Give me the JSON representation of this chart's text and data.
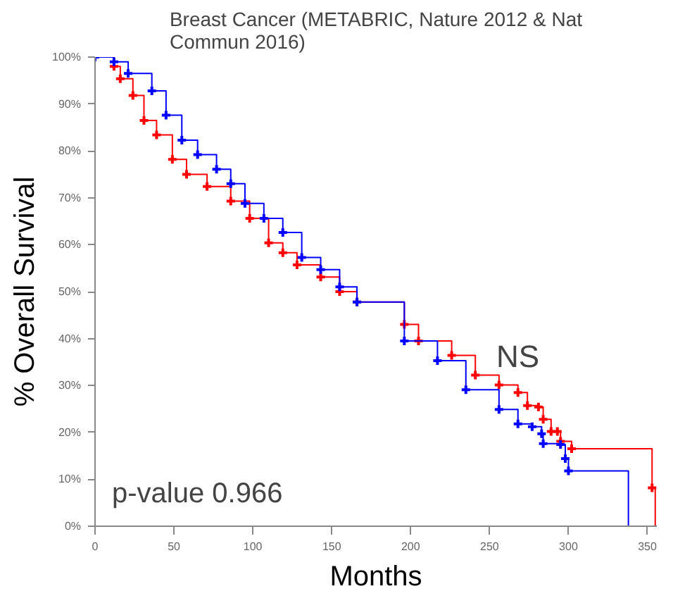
{
  "chart_data": {
    "type": "step",
    "title": "Breast Cancer (METABRIC, Nature 2012 & Nat Commun 2016)",
    "xlabel": "Months",
    "ylabel": "% Overall Survival",
    "annotations": [
      "p-value 0.966",
      "NS"
    ],
    "xlim": [
      0,
      356
    ],
    "xticks": [
      0,
      50,
      100,
      150,
      200,
      250,
      300,
      350
    ],
    "ylim": [
      0,
      100
    ],
    "yticks": [
      {
        "value": 0,
        "label": "0%"
      },
      {
        "value": 10,
        "label": "10%"
      },
      {
        "value": 20,
        "label": "20%"
      },
      {
        "value": 30,
        "label": "30%"
      },
      {
        "value": 40,
        "label": "40%"
      },
      {
        "value": 50,
        "label": "50%"
      },
      {
        "value": 60,
        "label": "60%"
      },
      {
        "value": 70,
        "label": "70%"
      },
      {
        "value": 80,
        "label": "80%"
      },
      {
        "value": 90,
        "label": "90%"
      },
      {
        "value": 100,
        "label": "100%"
      }
    ],
    "grid": false,
    "marker": "cross",
    "line_style": "solid",
    "series": [
      {
        "color": "#ff0000",
        "x": [
          0,
          12,
          16,
          24,
          31,
          39,
          49,
          58,
          71,
          86,
          98,
          110,
          119,
          128,
          143,
          155,
          166,
          196,
          205,
          226,
          241,
          256,
          268,
          274,
          281,
          284,
          289,
          293,
          295,
          302,
          353,
          355
        ],
        "values": [
          100,
          98,
          95.4,
          91.8,
          86.5,
          83.4,
          78.2,
          75,
          72.4,
          69.3,
          65.6,
          60.4,
          58.3,
          55.7,
          53.1,
          50,
          47.8,
          43,
          39.5,
          36.4,
          32.2,
          30.1,
          28.5,
          25.7,
          25.4,
          22.8,
          20.2,
          20.2,
          18.1,
          16.5,
          8.2,
          0
        ]
      },
      {
        "color": "#0000ff",
        "x": [
          0,
          12,
          21,
          36,
          45,
          55,
          65,
          77,
          86,
          95,
          107,
          119,
          131,
          143,
          155,
          166,
          196,
          217,
          235,
          256,
          268,
          277,
          283,
          284,
          295,
          298,
          300,
          338
        ],
        "values": [
          100,
          99,
          96.5,
          92.8,
          87.6,
          82.3,
          79.2,
          76.1,
          73,
          68.8,
          65.6,
          62.6,
          57.3,
          54.7,
          51,
          47.8,
          39.5,
          35.3,
          29.1,
          24.9,
          21.8,
          21.2,
          19.7,
          17.6,
          17.4,
          14.4,
          11.8,
          0
        ]
      }
    ]
  }
}
